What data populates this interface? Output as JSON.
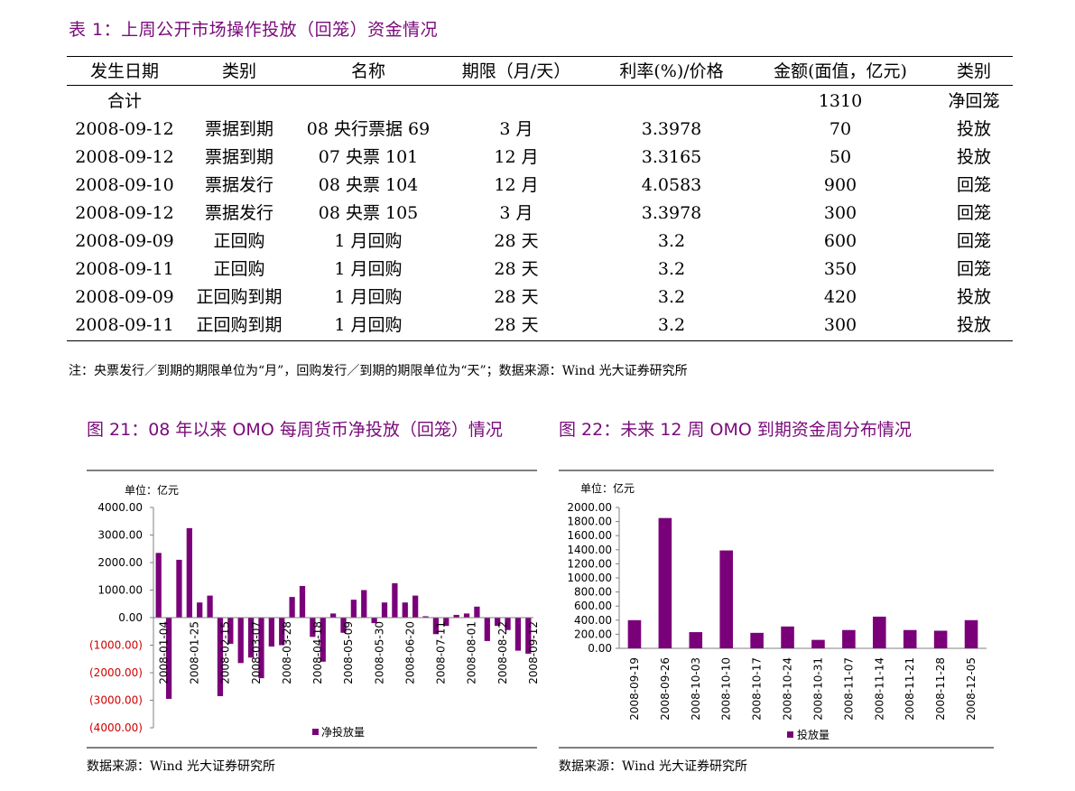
{
  "table": {
    "title": "表 1：上周公开市场操作投放（回笼）资金情况",
    "headers": [
      "发生日期",
      "类别",
      "名称",
      "期限（月/天）",
      "利率(%)/价格",
      "金额(面值，亿元)",
      "类别"
    ],
    "total": {
      "label": "合计",
      "amount": "1310",
      "type": "净回笼"
    },
    "rows": [
      [
        "2008-09-12",
        "票据到期",
        "08 央行票据 69",
        "3 月",
        "3.3978",
        "70",
        "投放"
      ],
      [
        "2008-09-12",
        "票据到期",
        "07 央票 101",
        "12 月",
        "3.3165",
        "50",
        "投放"
      ],
      [
        "2008-09-10",
        "票据发行",
        "08 央票 104",
        "12 月",
        "4.0583",
        "900",
        "回笼"
      ],
      [
        "2008-09-12",
        "票据发行",
        "08 央票 105",
        "3 月",
        "3.3978",
        "300",
        "回笼"
      ],
      [
        "2008-09-09",
        "正回购",
        "1 月回购",
        "28 天",
        "3.2",
        "600",
        "回笼"
      ],
      [
        "2008-09-11",
        "正回购",
        "1 月回购",
        "28 天",
        "3.2",
        "350",
        "回笼"
      ],
      [
        "2008-09-09",
        "正回购到期",
        "1 月回购",
        "28 天",
        "3.2",
        "420",
        "投放"
      ],
      [
        "2008-09-11",
        "正回购到期",
        "1 月回购",
        "28 天",
        "3.2",
        "300",
        "投放"
      ]
    ],
    "note": "注：央票发行／到期的期限单位为“月”，回购发行／到期的期限单位为“天”；数据来源：Wind   光大证券研究所"
  },
  "chart_data": [
    {
      "type": "bar",
      "title": "图 21：08 年以来 OMO 每周货币净投放（回笼）情况",
      "unit_label": "单位：亿元",
      "series_name": "净投放量",
      "bar_color": "#7a007a",
      "negative_label_color": "#d00000",
      "ylim": [
        -4000,
        4000
      ],
      "yticks": [
        "4000.00",
        "3000.00",
        "2000.00",
        "1000.00",
        "0.00",
        "(1000.00)",
        "(2000.00)",
        "(3000.00)",
        "(4000.00)"
      ],
      "xtick_labels": [
        "2008-01-04",
        "2008-01-25",
        "2008-02-15",
        "2008-03-07",
        "2008-03-28",
        "2008-04-18",
        "2008-05-09",
        "2008-05-30",
        "2008-06-20",
        "2008-07-11",
        "2008-08-01",
        "2008-08-22",
        "2008-09-12"
      ],
      "values": [
        2350,
        -2950,
        2100,
        3250,
        550,
        800,
        -2850,
        -950,
        -1650,
        -1450,
        -2200,
        -1050,
        -1000,
        750,
        1150,
        -700,
        -1600,
        150,
        -550,
        650,
        1000,
        -200,
        550,
        1250,
        550,
        800,
        50,
        -600,
        -300,
        100,
        150,
        400,
        -850,
        -300,
        -450,
        -1200,
        -1310
      ],
      "source": "数据来源：Wind   光大证券研究所"
    },
    {
      "type": "bar",
      "title": "图 22：未来 12 周 OMO 到期资金周分布情况",
      "unit_label": "单位：亿元",
      "series_name": "投放量",
      "bar_color": "#7a007a",
      "ylim": [
        0,
        2000
      ],
      "yticks": [
        "2000.00",
        "1800.00",
        "1600.00",
        "1400.00",
        "1200.00",
        "1000.00",
        "800.00",
        "600.00",
        "400.00",
        "200.00",
        "0.00"
      ],
      "categories": [
        "2008-09-19",
        "2008-09-26",
        "2008-10-03",
        "2008-10-10",
        "2008-10-17",
        "2008-10-24",
        "2008-10-31",
        "2008-11-07",
        "2008-11-14",
        "2008-11-21",
        "2008-11-28",
        "2008-12-05"
      ],
      "values": [
        400,
        1850,
        230,
        1390,
        220,
        310,
        120,
        260,
        450,
        260,
        250,
        400
      ],
      "source": "数据来源：Wind   光大证券研究所"
    }
  ]
}
